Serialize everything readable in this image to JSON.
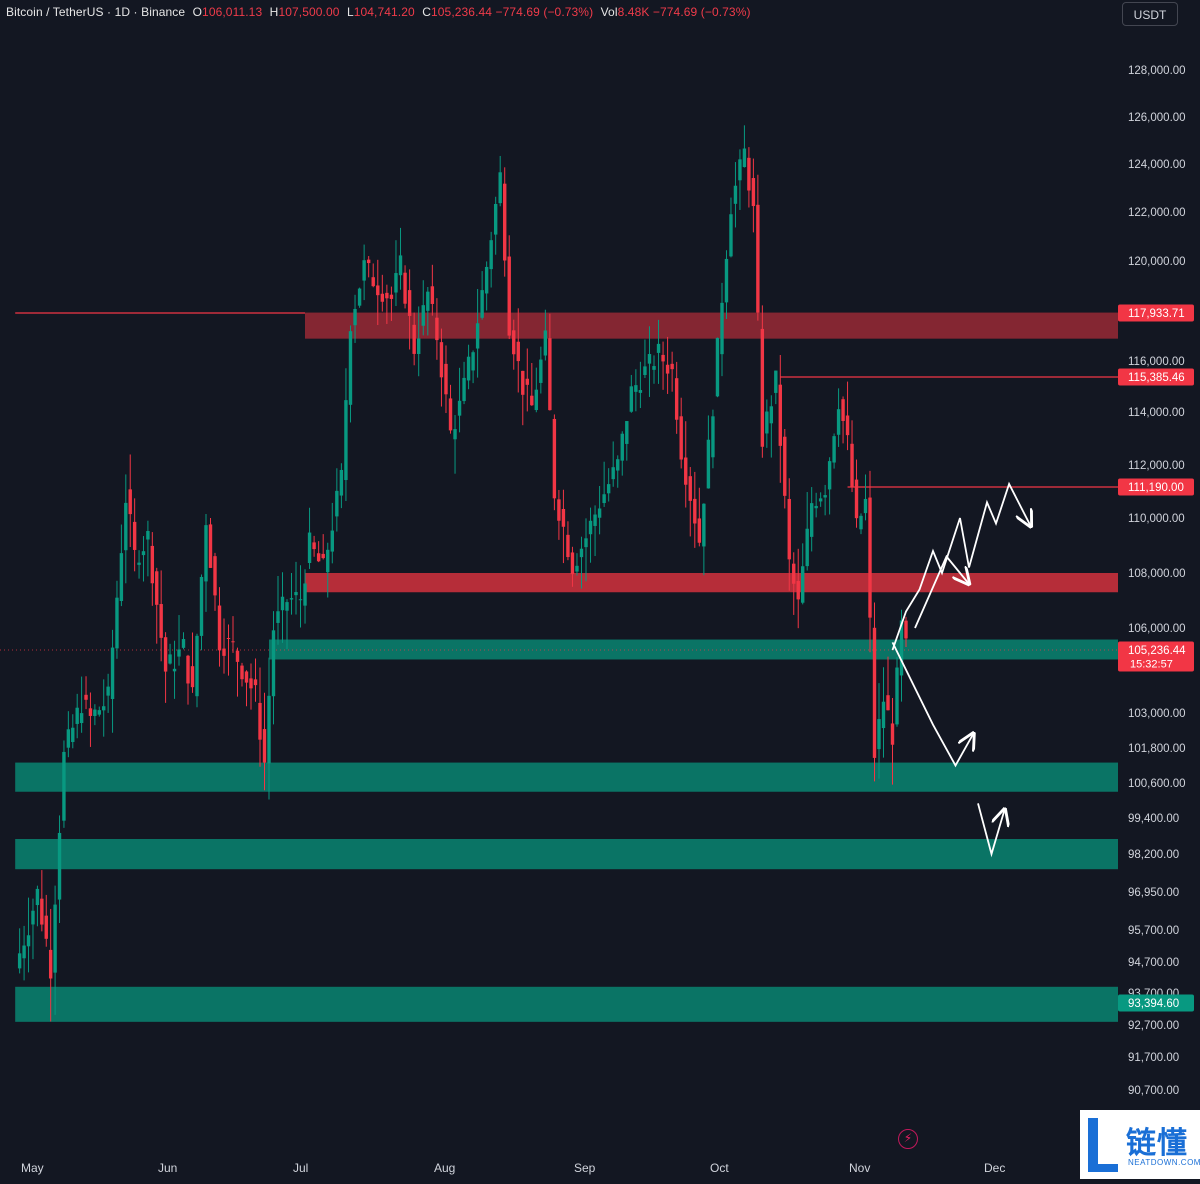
{
  "header": {
    "symbol": "Bitcoin / TetherUS · 1D · Binance",
    "ohlc": [
      {
        "label": "O",
        "value": "106,011.13"
      },
      {
        "label": "H",
        "value": "107,500.00"
      },
      {
        "label": "L",
        "value": "104,741.20"
      },
      {
        "label": "C",
        "value": "105,236.44"
      }
    ],
    "change": "−774.69 (−0.73%)",
    "volume_label": "Vol",
    "volume": "8.48K",
    "volume_change": "−774.69 (−0.73%)"
  },
  "currency_button": "USDT",
  "colors": {
    "background": "#131722",
    "up": "#089981",
    "down": "#f23645",
    "resistance_zone": "#c9303c",
    "support_zone": "#0a7d6b",
    "axis_text": "#d1d4dc",
    "annotation": "#ffffff"
  },
  "chart_data": {
    "type": "candlestick",
    "title": "Bitcoin / TetherUS · 1D · Binance",
    "x_labels": [
      "May",
      "Jun",
      "Jul",
      "Aug",
      "Sep",
      "Oct",
      "Nov",
      "Dec"
    ],
    "y_ticks": [
      {
        "value": 128000,
        "label": "128,000.00"
      },
      {
        "value": 126000,
        "label": "126,000.00"
      },
      {
        "value": 124000,
        "label": "124,000.00"
      },
      {
        "value": 122000,
        "label": "122,000.00"
      },
      {
        "value": 120000,
        "label": "120,000.00"
      },
      {
        "value": 116000,
        "label": "116,000.00"
      },
      {
        "value": 114000,
        "label": "114,000.00"
      },
      {
        "value": 112000,
        "label": "112,000.00"
      },
      {
        "value": 110000,
        "label": "110,000.00"
      },
      {
        "value": 108000,
        "label": "108,000.00"
      },
      {
        "value": 106000,
        "label": "106,000.00"
      },
      {
        "value": 103000,
        "label": "103,000.00"
      },
      {
        "value": 101800,
        "label": "101,800.00"
      },
      {
        "value": 100600,
        "label": "100,600.00"
      },
      {
        "value": 99400,
        "label": "99,400.00"
      },
      {
        "value": 98200,
        "label": "98,200.00"
      },
      {
        "value": 96950,
        "label": "96,950.00"
      },
      {
        "value": 95700,
        "label": "95,700.00"
      },
      {
        "value": 94700,
        "label": "94,700.00"
      },
      {
        "value": 93700,
        "label": "93,700.00"
      },
      {
        "value": 92700,
        "label": "92,700.00"
      },
      {
        "value": 91700,
        "label": "91,700.00"
      },
      {
        "value": 90700,
        "label": "90,700.00"
      }
    ],
    "price_markers": [
      {
        "label": "117,933.71",
        "value": 117933.71,
        "color": "#f23645"
      },
      {
        "label": "115,385.46",
        "value": 115385.46,
        "color": "#f23645"
      },
      {
        "label": "111,190.00",
        "value": 111190.0,
        "color": "#f23645"
      },
      {
        "label": "105,236.44",
        "value": 105236.44,
        "color": "#f23645",
        "countdown": "15:32:57"
      },
      {
        "label": "93,394.60",
        "value": 93394.6,
        "color": "#089981"
      }
    ],
    "zones": [
      {
        "kind": "resistance",
        "from": 116900,
        "to": 117950,
        "start": "Jul 1"
      },
      {
        "kind": "resistance",
        "from": 107300,
        "to": 108000,
        "start": "Jul 1"
      },
      {
        "kind": "support",
        "from": 104900,
        "to": 105600,
        "start": "Jun 23"
      },
      {
        "kind": "support",
        "from": 100300,
        "to": 101300,
        "start": "Apr 28"
      },
      {
        "kind": "support",
        "from": 97700,
        "to": 98700,
        "start": "Apr 28"
      },
      {
        "kind": "support",
        "from": 92800,
        "to": 93900,
        "start": "Apr 28"
      }
    ],
    "horizontal_lines": [
      {
        "value": 117933.71,
        "from": "Apr 28",
        "to": "Jul 1"
      },
      {
        "value": 115385.46,
        "from": "Oct 14",
        "to": "end"
      },
      {
        "value": 111190.0,
        "from": "Oct 29",
        "to": "end"
      }
    ],
    "scenario_paths": [
      {
        "name": "bullish",
        "points": [
          [
            105236,
            "Nov 8"
          ],
          [
            106600,
            "Nov 11"
          ],
          [
            107400,
            "Nov 14"
          ],
          [
            108800,
            "Nov 17"
          ],
          [
            108000,
            "Nov 19"
          ],
          [
            110000,
            "Nov 23"
          ],
          [
            108200,
            "Nov 25"
          ],
          [
            110600,
            "Nov 29"
          ],
          [
            109800,
            "Dec 1"
          ],
          [
            111300,
            "Dec 4"
          ],
          [
            109700,
            "Dec 9"
          ]
        ]
      },
      {
        "name": "bullish-alt",
        "points": [
          [
            106000,
            "Nov 13"
          ],
          [
            108600,
            "Nov 20"
          ],
          [
            107600,
            "Nov 25"
          ]
        ]
      },
      {
        "name": "bearish",
        "points": [
          [
            105500,
            "Nov 8"
          ],
          [
            102600,
            "Nov 17"
          ],
          [
            101200,
            "Nov 22"
          ],
          [
            102300,
            "Nov 26"
          ]
        ]
      },
      {
        "name": "bearish-extension",
        "points": [
          [
            99900,
            "Nov 27"
          ],
          [
            98200,
            "Nov 30"
          ],
          [
            99700,
            "Dec 3"
          ]
        ]
      }
    ]
  }
}
